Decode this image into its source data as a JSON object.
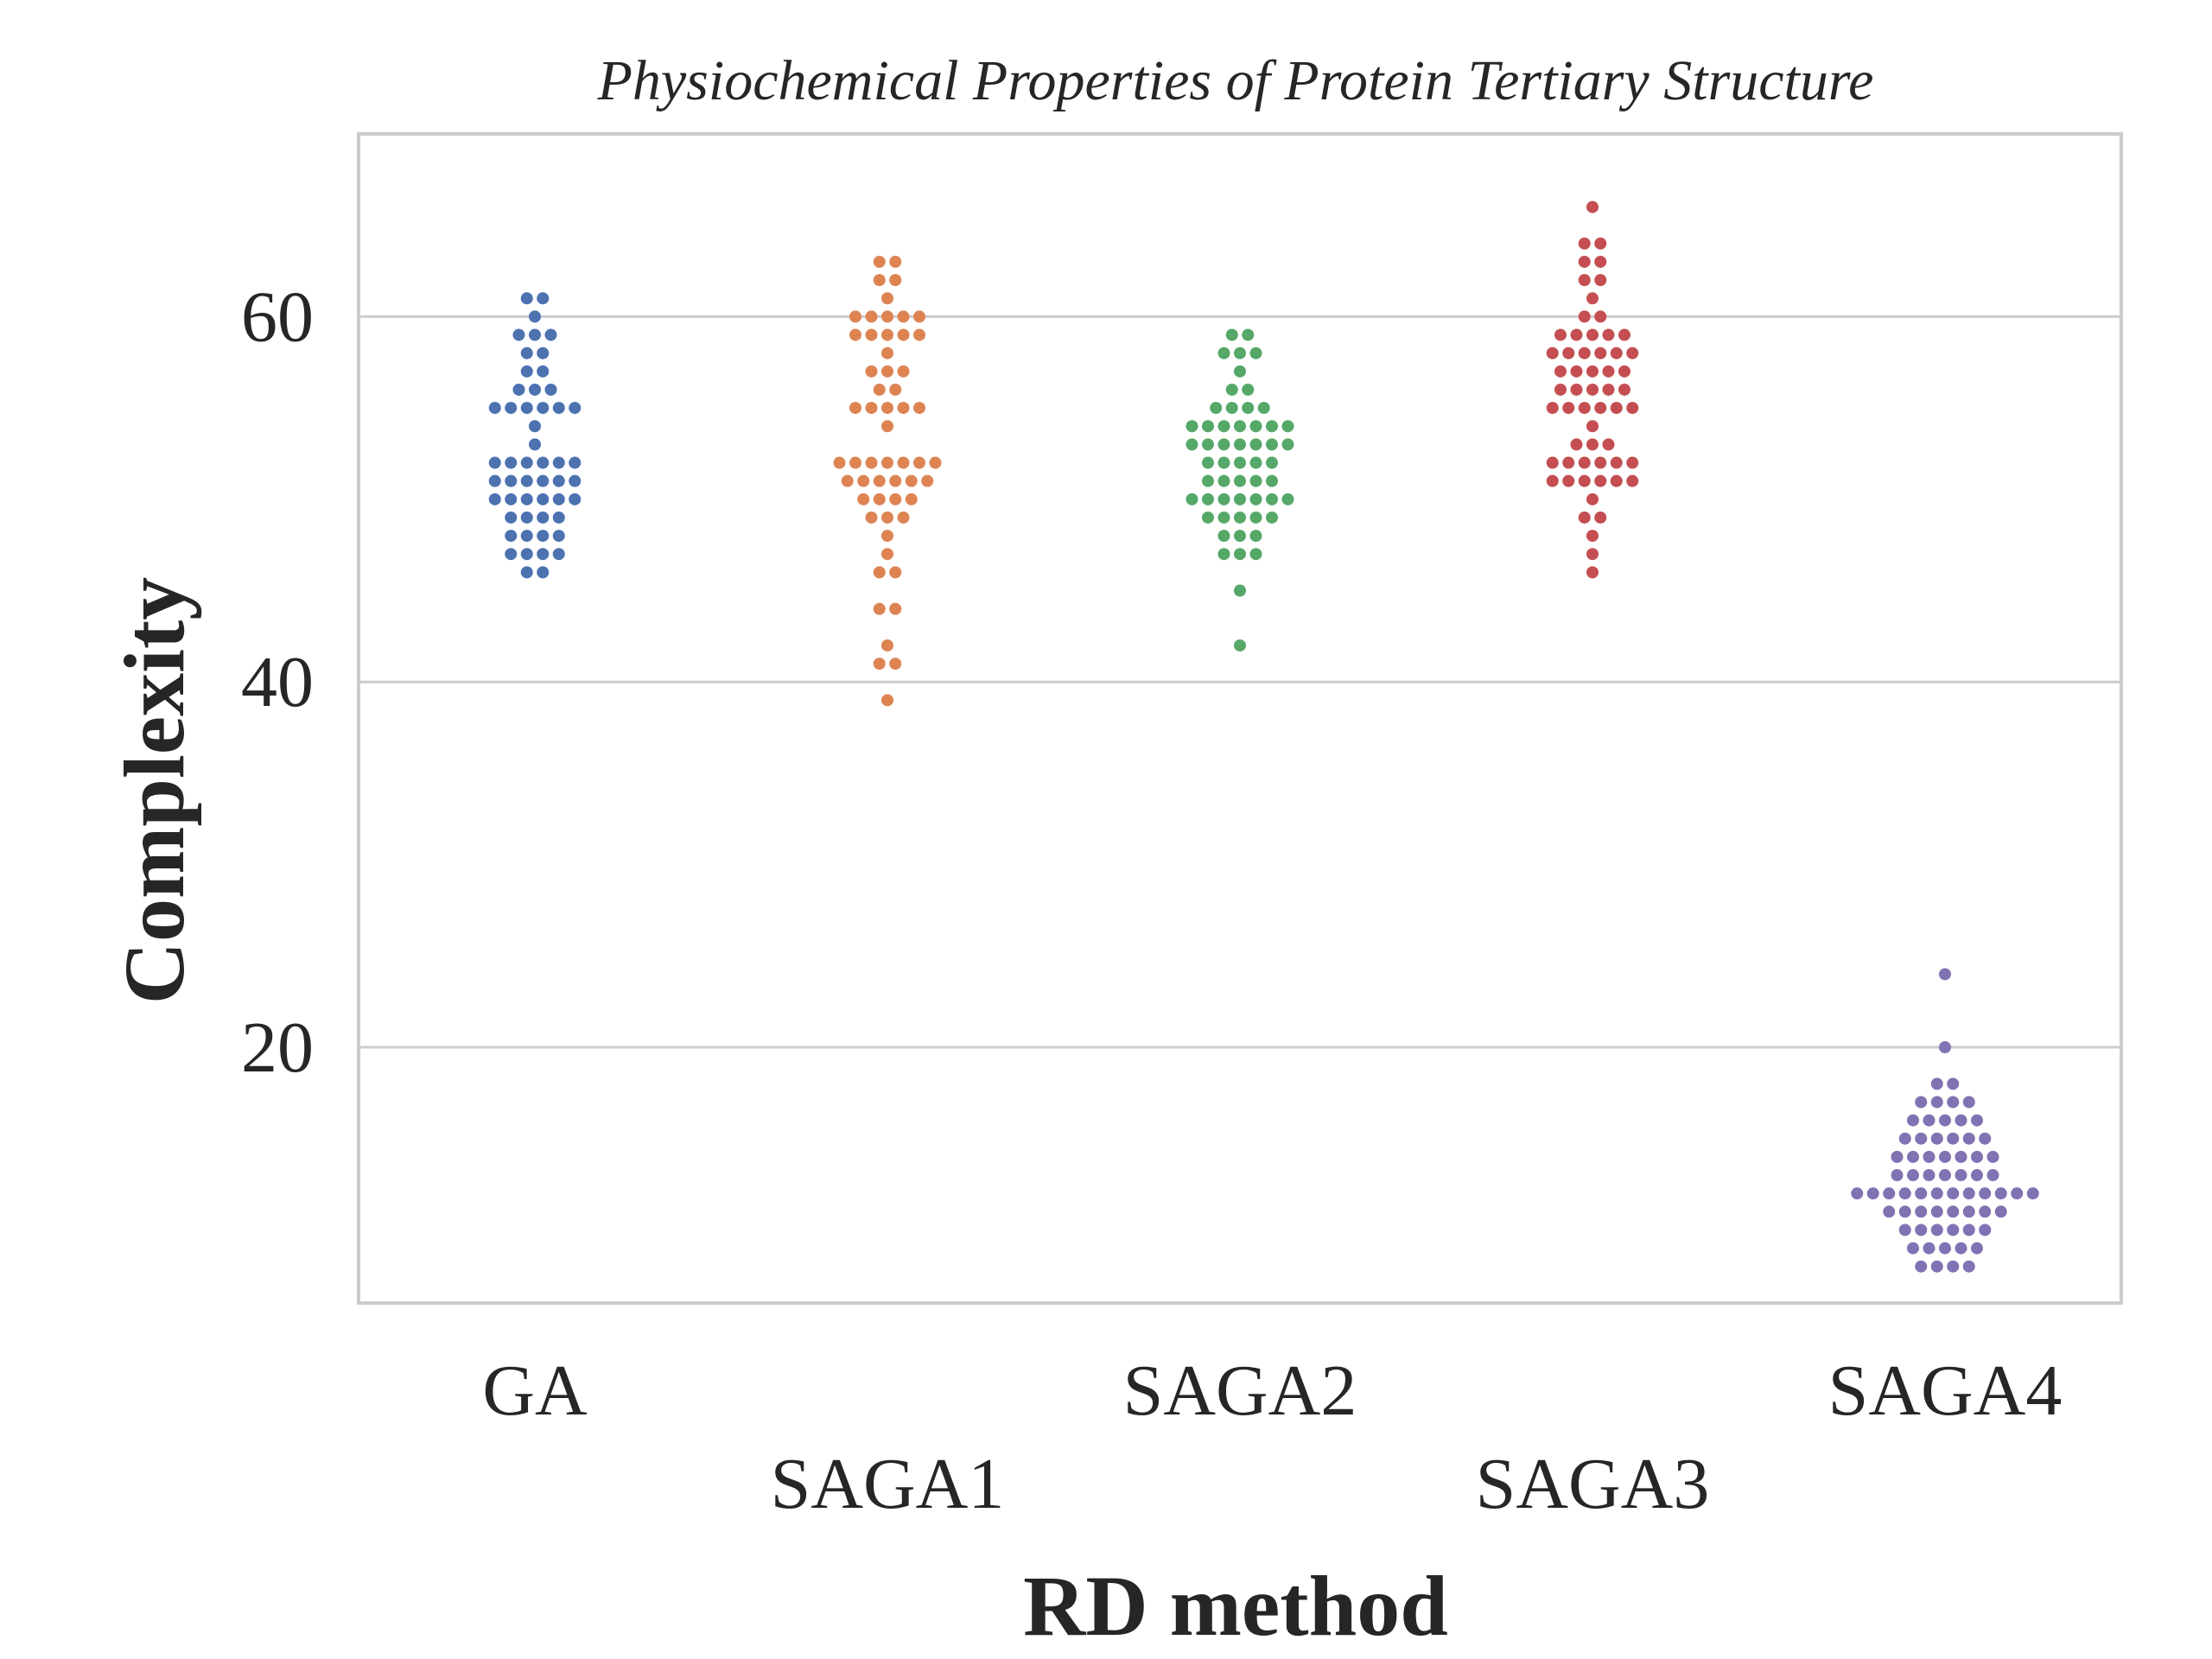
{
  "chart_data": {
    "type": "scatter",
    "subtype": "swarm",
    "title": "Physiochemical Properties of Protein Tertiary Structure",
    "xlabel": "RD method",
    "ylabel": "Complexity",
    "ylim": [
      6,
      70
    ],
    "yticks": [
      20,
      40,
      60
    ],
    "grid": true,
    "legend": "none",
    "categories": [
      "GA",
      "SAGA1",
      "SAGA2",
      "SAGA3",
      "SAGA4"
    ],
    "colors": [
      "#4c72b0",
      "#dd8452",
      "#55a868",
      "#c44e52",
      "#8172b3"
    ],
    "series": [
      {
        "values": [
          61,
          61,
          60,
          59,
          59,
          59,
          58,
          58,
          57,
          57,
          56,
          56,
          56,
          55,
          55,
          55,
          55,
          55,
          55,
          54,
          53,
          52,
          52,
          52,
          52,
          52,
          52,
          51,
          51,
          51,
          51,
          51,
          51,
          50,
          50,
          50,
          50,
          50,
          50,
          49,
          49,
          49,
          49,
          48,
          48,
          48,
          48,
          47,
          47,
          47,
          47,
          46,
          46
        ]
      },
      {
        "values": [
          63,
          63,
          62,
          62,
          61,
          60,
          60,
          60,
          60,
          60,
          59,
          59,
          59,
          59,
          59,
          58,
          57,
          57,
          57,
          56,
          56,
          55,
          55,
          55,
          55,
          55,
          54,
          52,
          52,
          52,
          52,
          52,
          52,
          52,
          51,
          51,
          51,
          51,
          51,
          51,
          50,
          50,
          50,
          50,
          49,
          49,
          49,
          48,
          47,
          46,
          46,
          44,
          44,
          42,
          41,
          41,
          39
        ]
      },
      {
        "values": [
          59,
          59,
          58,
          58,
          58,
          57,
          56,
          56,
          55,
          55,
          55,
          55,
          54,
          54,
          54,
          54,
          54,
          54,
          54,
          53,
          53,
          53,
          53,
          53,
          53,
          53,
          52,
          52,
          52,
          52,
          52,
          51,
          51,
          51,
          51,
          51,
          50,
          50,
          50,
          50,
          50,
          50,
          50,
          49,
          49,
          49,
          49,
          49,
          48,
          48,
          48,
          47,
          47,
          47,
          45,
          42
        ]
      },
      {
        "values": [
          66,
          64,
          64,
          63,
          63,
          62,
          62,
          61,
          60,
          60,
          59,
          59,
          59,
          59,
          59,
          58,
          58,
          58,
          58,
          58,
          58,
          57,
          57,
          57,
          57,
          57,
          56,
          56,
          56,
          56,
          56,
          55,
          55,
          55,
          55,
          55,
          55,
          54,
          53,
          53,
          53,
          52,
          52,
          52,
          52,
          52,
          52,
          51,
          51,
          51,
          51,
          51,
          51,
          50,
          49,
          49,
          48,
          47,
          46
        ]
      },
      {
        "values": [
          24,
          20,
          18,
          18,
          17,
          17,
          17,
          17,
          16,
          16,
          16,
          16,
          16,
          15,
          15,
          15,
          15,
          15,
          15,
          14,
          14,
          14,
          14,
          14,
          14,
          14,
          13,
          13,
          13,
          13,
          13,
          13,
          13,
          12,
          12,
          12,
          12,
          12,
          12,
          12,
          12,
          12,
          12,
          12,
          12,
          11,
          11,
          11,
          11,
          11,
          11,
          11,
          11,
          10,
          10,
          10,
          10,
          10,
          10,
          9,
          9,
          9,
          9,
          9,
          8,
          8,
          8,
          8
        ]
      }
    ]
  }
}
